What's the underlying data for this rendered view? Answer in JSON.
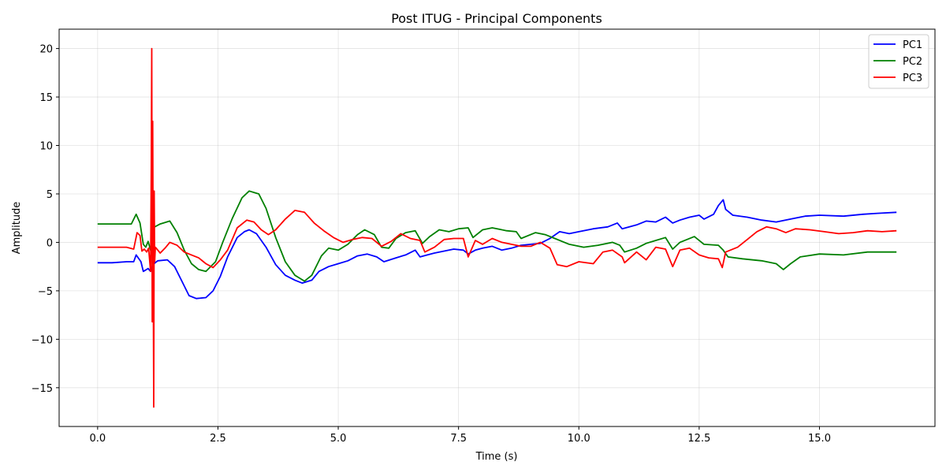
{
  "chart_data": {
    "type": "line",
    "title": "Post ITUG - Principal Components",
    "xlabel": "Time (s)",
    "ylabel": "Amplitude",
    "xlim": [
      -0.8,
      17.4
    ],
    "ylim": [
      -19,
      22
    ],
    "xticks": [
      0.0,
      2.5,
      5.0,
      7.5,
      10.0,
      12.5,
      15.0
    ],
    "xtick_labels": [
      "0.0",
      "2.5",
      "5.0",
      "7.5",
      "10.0",
      "12.5",
      "15.0"
    ],
    "yticks": [
      -15,
      -10,
      -5,
      0,
      5,
      10,
      15,
      20
    ],
    "ytick_labels": [
      "−15",
      "−10",
      "−5",
      "0",
      "5",
      "10",
      "15",
      "20"
    ],
    "grid": true,
    "legend_position": "top-right",
    "series": [
      {
        "name": "PC1",
        "color": "#0000ff",
        "points": [
          [
            0.0,
            -2.1
          ],
          [
            0.3,
            -2.1
          ],
          [
            0.6,
            -2.0
          ],
          [
            0.75,
            -2.0
          ],
          [
            0.8,
            -1.3
          ],
          [
            0.9,
            -2.0
          ],
          [
            0.95,
            -3.0
          ],
          [
            1.05,
            -2.7
          ],
          [
            1.1,
            -3.0
          ],
          [
            1.13,
            -2.5
          ],
          [
            1.17,
            -2.2
          ],
          [
            1.25,
            -1.9
          ],
          [
            1.45,
            -1.8
          ],
          [
            1.6,
            -2.5
          ],
          [
            1.75,
            -4.0
          ],
          [
            1.9,
            -5.5
          ],
          [
            2.05,
            -5.8
          ],
          [
            2.25,
            -5.7
          ],
          [
            2.4,
            -5.0
          ],
          [
            2.55,
            -3.5
          ],
          [
            2.7,
            -1.5
          ],
          [
            2.9,
            0.5
          ],
          [
            3.05,
            1.1
          ],
          [
            3.15,
            1.3
          ],
          [
            3.3,
            0.9
          ],
          [
            3.5,
            -0.5
          ],
          [
            3.7,
            -2.3
          ],
          [
            3.9,
            -3.4
          ],
          [
            4.1,
            -3.9
          ],
          [
            4.25,
            -4.2
          ],
          [
            4.45,
            -3.9
          ],
          [
            4.6,
            -3.0
          ],
          [
            4.8,
            -2.5
          ],
          [
            5.0,
            -2.2
          ],
          [
            5.2,
            -1.9
          ],
          [
            5.4,
            -1.4
          ],
          [
            5.6,
            -1.2
          ],
          [
            5.8,
            -1.5
          ],
          [
            5.95,
            -2.0
          ],
          [
            6.2,
            -1.6
          ],
          [
            6.4,
            -1.3
          ],
          [
            6.6,
            -0.8
          ],
          [
            6.7,
            -1.5
          ],
          [
            6.85,
            -1.3
          ],
          [
            7.0,
            -1.1
          ],
          [
            7.2,
            -0.9
          ],
          [
            7.4,
            -0.7
          ],
          [
            7.6,
            -0.8
          ],
          [
            7.7,
            -1.2
          ],
          [
            7.85,
            -0.8
          ],
          [
            8.0,
            -0.6
          ],
          [
            8.2,
            -0.4
          ],
          [
            8.4,
            -0.8
          ],
          [
            8.6,
            -0.6
          ],
          [
            8.8,
            -0.3
          ],
          [
            9.0,
            -0.2
          ],
          [
            9.2,
            -0.1
          ],
          [
            9.4,
            0.4
          ],
          [
            9.6,
            1.1
          ],
          [
            9.8,
            0.9
          ],
          [
            10.0,
            1.1
          ],
          [
            10.3,
            1.4
          ],
          [
            10.6,
            1.6
          ],
          [
            10.8,
            2.0
          ],
          [
            10.9,
            1.4
          ],
          [
            11.2,
            1.8
          ],
          [
            11.4,
            2.2
          ],
          [
            11.6,
            2.1
          ],
          [
            11.8,
            2.6
          ],
          [
            11.95,
            2.0
          ],
          [
            12.1,
            2.3
          ],
          [
            12.3,
            2.6
          ],
          [
            12.5,
            2.8
          ],
          [
            12.6,
            2.4
          ],
          [
            12.8,
            2.9
          ],
          [
            12.9,
            3.8
          ],
          [
            13.0,
            4.4
          ],
          [
            13.05,
            3.4
          ],
          [
            13.2,
            2.8
          ],
          [
            13.5,
            2.6
          ],
          [
            13.8,
            2.3
          ],
          [
            14.1,
            2.1
          ],
          [
            14.4,
            2.4
          ],
          [
            14.7,
            2.7
          ],
          [
            15.0,
            2.8
          ],
          [
            15.5,
            2.7
          ],
          [
            15.9,
            2.9
          ],
          [
            16.2,
            3.0
          ],
          [
            16.6,
            3.1
          ]
        ]
      },
      {
        "name": "PC2",
        "color": "#008000",
        "points": [
          [
            0.0,
            1.9
          ],
          [
            0.4,
            1.9
          ],
          [
            0.7,
            1.9
          ],
          [
            0.8,
            2.9
          ],
          [
            0.88,
            2.0
          ],
          [
            0.95,
            -0.2
          ],
          [
            1.0,
            -0.5
          ],
          [
            1.05,
            0.1
          ],
          [
            1.1,
            -0.8
          ],
          [
            1.15,
            1.5
          ],
          [
            1.3,
            1.9
          ],
          [
            1.5,
            2.2
          ],
          [
            1.65,
            1.0
          ],
          [
            1.8,
            -0.8
          ],
          [
            1.95,
            -2.2
          ],
          [
            2.1,
            -2.8
          ],
          [
            2.25,
            -3.0
          ],
          [
            2.45,
            -2.0
          ],
          [
            2.6,
            0.0
          ],
          [
            2.8,
            2.5
          ],
          [
            3.0,
            4.6
          ],
          [
            3.15,
            5.3
          ],
          [
            3.35,
            5.0
          ],
          [
            3.5,
            3.5
          ],
          [
            3.7,
            0.5
          ],
          [
            3.9,
            -2.0
          ],
          [
            4.1,
            -3.4
          ],
          [
            4.3,
            -4.0
          ],
          [
            4.45,
            -3.4
          ],
          [
            4.65,
            -1.4
          ],
          [
            4.8,
            -0.6
          ],
          [
            5.0,
            -0.8
          ],
          [
            5.2,
            -0.2
          ],
          [
            5.4,
            0.8
          ],
          [
            5.55,
            1.3
          ],
          [
            5.75,
            0.8
          ],
          [
            5.9,
            -0.5
          ],
          [
            6.05,
            -0.6
          ],
          [
            6.2,
            0.4
          ],
          [
            6.4,
            1.0
          ],
          [
            6.6,
            1.2
          ],
          [
            6.75,
            -0.1
          ],
          [
            6.9,
            0.6
          ],
          [
            7.1,
            1.3
          ],
          [
            7.3,
            1.1
          ],
          [
            7.5,
            1.4
          ],
          [
            7.7,
            1.5
          ],
          [
            7.8,
            0.5
          ],
          [
            8.0,
            1.3
          ],
          [
            8.2,
            1.5
          ],
          [
            8.5,
            1.2
          ],
          [
            8.7,
            1.1
          ],
          [
            8.8,
            0.4
          ],
          [
            9.1,
            1.0
          ],
          [
            9.3,
            0.8
          ],
          [
            9.5,
            0.4
          ],
          [
            9.8,
            -0.2
          ],
          [
            10.1,
            -0.5
          ],
          [
            10.4,
            -0.3
          ],
          [
            10.7,
            0.0
          ],
          [
            10.85,
            -0.3
          ],
          [
            10.95,
            -1.0
          ],
          [
            11.2,
            -0.6
          ],
          [
            11.4,
            -0.1
          ],
          [
            11.6,
            0.2
          ],
          [
            11.8,
            0.5
          ],
          [
            11.95,
            -0.7
          ],
          [
            12.1,
            0.0
          ],
          [
            12.4,
            0.6
          ],
          [
            12.6,
            -0.2
          ],
          [
            12.9,
            -0.3
          ],
          [
            13.0,
            -0.8
          ],
          [
            13.1,
            -1.5
          ],
          [
            13.4,
            -1.7
          ],
          [
            13.8,
            -1.9
          ],
          [
            14.1,
            -2.2
          ],
          [
            14.25,
            -2.8
          ],
          [
            14.4,
            -2.2
          ],
          [
            14.6,
            -1.5
          ],
          [
            15.0,
            -1.2
          ],
          [
            15.5,
            -1.3
          ],
          [
            16.0,
            -1.0
          ],
          [
            16.6,
            -1.0
          ]
        ]
      },
      {
        "name": "PC3",
        "color": "#ff0000",
        "points": [
          [
            0.0,
            -0.5
          ],
          [
            0.3,
            -0.5
          ],
          [
            0.6,
            -0.5
          ],
          [
            0.75,
            -0.7
          ],
          [
            0.82,
            1.0
          ],
          [
            0.88,
            0.7
          ],
          [
            0.92,
            -0.9
          ],
          [
            0.97,
            -0.7
          ],
          [
            1.02,
            -1.0
          ],
          [
            1.06,
            -0.6
          ],
          [
            1.1,
            -3.0
          ],
          [
            1.115,
            8.0
          ],
          [
            1.125,
            20.0
          ],
          [
            1.135,
            -8.2
          ],
          [
            1.145,
            12.5
          ],
          [
            1.155,
            -2.0
          ],
          [
            1.165,
            -17.0
          ],
          [
            1.175,
            5.3
          ],
          [
            1.185,
            -2.0
          ],
          [
            1.2,
            -0.5
          ],
          [
            1.3,
            -1.1
          ],
          [
            1.4,
            -0.6
          ],
          [
            1.5,
            0.0
          ],
          [
            1.65,
            -0.3
          ],
          [
            1.8,
            -1.0
          ],
          [
            1.95,
            -1.3
          ],
          [
            2.1,
            -1.6
          ],
          [
            2.25,
            -2.2
          ],
          [
            2.4,
            -2.6
          ],
          [
            2.55,
            -1.8
          ],
          [
            2.7,
            -0.8
          ],
          [
            2.9,
            1.5
          ],
          [
            3.1,
            2.3
          ],
          [
            3.25,
            2.1
          ],
          [
            3.4,
            1.3
          ],
          [
            3.55,
            0.8
          ],
          [
            3.7,
            1.3
          ],
          [
            3.9,
            2.4
          ],
          [
            4.1,
            3.3
          ],
          [
            4.3,
            3.1
          ],
          [
            4.5,
            2.0
          ],
          [
            4.7,
            1.2
          ],
          [
            4.9,
            0.5
          ],
          [
            5.1,
            0.0
          ],
          [
            5.3,
            0.3
          ],
          [
            5.5,
            0.5
          ],
          [
            5.7,
            0.4
          ],
          [
            5.9,
            -0.4
          ],
          [
            6.1,
            0.1
          ],
          [
            6.3,
            0.9
          ],
          [
            6.5,
            0.4
          ],
          [
            6.7,
            0.2
          ],
          [
            6.8,
            -1.0
          ],
          [
            7.0,
            -0.5
          ],
          [
            7.2,
            0.3
          ],
          [
            7.4,
            0.4
          ],
          [
            7.6,
            0.4
          ],
          [
            7.7,
            -1.5
          ],
          [
            7.85,
            0.2
          ],
          [
            8.0,
            -0.2
          ],
          [
            8.2,
            0.4
          ],
          [
            8.4,
            0.0
          ],
          [
            8.6,
            -0.2
          ],
          [
            8.8,
            -0.4
          ],
          [
            9.0,
            -0.4
          ],
          [
            9.2,
            0.0
          ],
          [
            9.4,
            -0.6
          ],
          [
            9.55,
            -2.3
          ],
          [
            9.75,
            -2.5
          ],
          [
            10.0,
            -2.0
          ],
          [
            10.3,
            -2.2
          ],
          [
            10.5,
            -1.0
          ],
          [
            10.7,
            -0.8
          ],
          [
            10.9,
            -1.5
          ],
          [
            10.95,
            -2.1
          ],
          [
            11.2,
            -1.0
          ],
          [
            11.4,
            -1.8
          ],
          [
            11.6,
            -0.5
          ],
          [
            11.8,
            -0.7
          ],
          [
            11.95,
            -2.5
          ],
          [
            12.1,
            -0.8
          ],
          [
            12.3,
            -0.6
          ],
          [
            12.5,
            -1.3
          ],
          [
            12.7,
            -1.6
          ],
          [
            12.9,
            -1.7
          ],
          [
            12.98,
            -2.6
          ],
          [
            13.05,
            -1.0
          ],
          [
            13.3,
            -0.5
          ],
          [
            13.5,
            0.3
          ],
          [
            13.7,
            1.1
          ],
          [
            13.9,
            1.6
          ],
          [
            14.1,
            1.4
          ],
          [
            14.3,
            1.0
          ],
          [
            14.5,
            1.4
          ],
          [
            14.8,
            1.3
          ],
          [
            15.1,
            1.1
          ],
          [
            15.4,
            0.9
          ],
          [
            15.7,
            1.0
          ],
          [
            16.0,
            1.2
          ],
          [
            16.3,
            1.1
          ],
          [
            16.6,
            1.2
          ]
        ]
      }
    ]
  }
}
